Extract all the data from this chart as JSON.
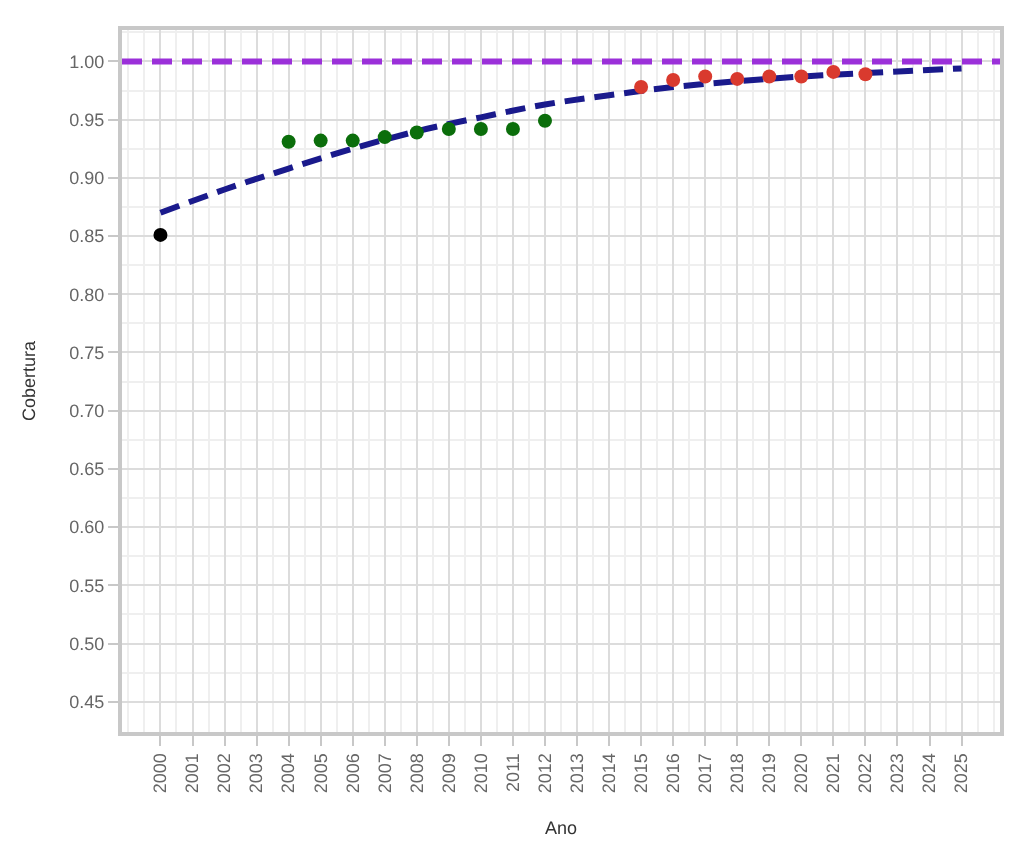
{
  "chart_data": {
    "type": "scatter",
    "xlabel": "Ano",
    "ylabel": "Cobertura",
    "xlim": [
      1998.8,
      2026.2
    ],
    "xticks": [
      2000,
      2001,
      2002,
      2003,
      2004,
      2005,
      2006,
      2007,
      2008,
      2009,
      2010,
      2011,
      2012,
      2013,
      2014,
      2015,
      2016,
      2017,
      2018,
      2019,
      2020,
      2021,
      2022,
      2023,
      2024,
      2025
    ],
    "ylim": [
      0.424,
      1.027
    ],
    "yticks": [
      {
        "value": 0.45,
        "label": "0.45"
      },
      {
        "value": 0.5,
        "label": "0.50"
      },
      {
        "value": 0.55,
        "label": "0.55"
      },
      {
        "value": 0.6,
        "label": "0.60"
      },
      {
        "value": 0.65,
        "label": "0.65"
      },
      {
        "value": 0.7,
        "label": "0.70"
      },
      {
        "value": 0.75,
        "label": "0.75"
      },
      {
        "value": 0.8,
        "label": "0.80"
      },
      {
        "value": 0.85,
        "label": "0.85"
      },
      {
        "value": 0.9,
        "label": "0.90"
      },
      {
        "value": 0.95,
        "label": "0.95"
      },
      {
        "value": 1.0,
        "label": "1.00"
      }
    ],
    "grid": true,
    "marker": "circle",
    "series": [
      {
        "type": "line",
        "color": "#1a1a8c",
        "line_style": "dashed",
        "marker": "none",
        "x": [
          2000,
          2002,
          2004,
          2006,
          2008,
          2010,
          2012,
          2014,
          2016,
          2018,
          2020,
          2022,
          2025
        ],
        "values": [
          0.87,
          0.89,
          0.908,
          0.925,
          0.94,
          0.952,
          0.963,
          0.971,
          0.978,
          0.983,
          0.987,
          0.99,
          0.994
        ]
      },
      {
        "color": "#000000",
        "x": [
          2000
        ],
        "values": [
          0.851
        ]
      },
      {
        "color": "#0b6e0b",
        "x": [
          2004,
          2005,
          2006,
          2007,
          2008,
          2009,
          2010,
          2011,
          2012
        ],
        "values": [
          0.931,
          0.932,
          0.932,
          0.935,
          0.939,
          0.942,
          0.942,
          0.942,
          0.949
        ]
      },
      {
        "color": "#d93a2e",
        "x": [
          2015,
          2016,
          2017,
          2018,
          2019,
          2020,
          2021,
          2022
        ],
        "values": [
          0.978,
          0.984,
          0.987,
          0.985,
          0.987,
          0.987,
          0.991,
          0.989
        ]
      }
    ],
    "ref_lines": [
      {
        "axis": "y",
        "value": 1.0,
        "color": "#9b30d9",
        "line_style": "dashed"
      }
    ]
  }
}
